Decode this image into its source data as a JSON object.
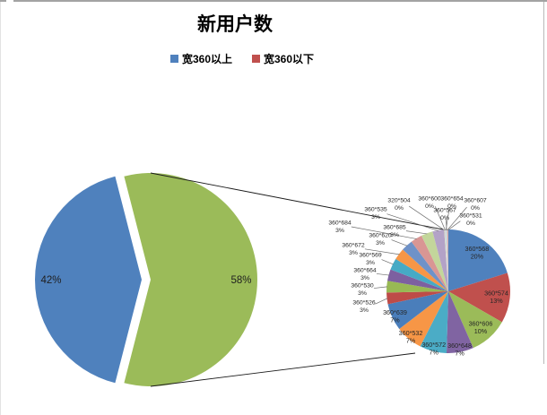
{
  "chart_data": {
    "type": "pie-of-pie",
    "title": "新用户数",
    "legend": {
      "position": "top",
      "items": [
        {
          "label": "宽360以上",
          "color": "#4F81BD"
        },
        {
          "label": "宽360以下",
          "color": "#C0504D"
        }
      ]
    },
    "main_pie": {
      "slices": [
        {
          "label": "42%",
          "value": 42,
          "color": "#4F81BD"
        },
        {
          "label": "58%",
          "value": 58,
          "color": "#9BBB59"
        }
      ]
    },
    "secondary_pie": {
      "slices": [
        {
          "name": "360*568",
          "pct": "20%",
          "value": 20,
          "color": "#4F81BD"
        },
        {
          "name": "360*574",
          "pct": "13%",
          "value": 13,
          "color": "#C0504D"
        },
        {
          "name": "360*606",
          "pct": "10%",
          "value": 10,
          "color": "#9BBB59"
        },
        {
          "name": "360*648",
          "pct": "7%",
          "value": 7,
          "color": "#8064A2"
        },
        {
          "name": "360*572",
          "pct": "7%",
          "value": 7,
          "color": "#4BACC6"
        },
        {
          "name": "360*532",
          "pct": "7%",
          "value": 7,
          "color": "#F79646"
        },
        {
          "name": "360*639",
          "pct": "7%",
          "value": 7,
          "color": "#4A7EBB"
        },
        {
          "name": "360*526",
          "pct": "3%",
          "value": 3,
          "color": "#BE4B48"
        },
        {
          "name": "360*530",
          "pct": "3%",
          "value": 3,
          "color": "#98B954"
        },
        {
          "name": "360*664",
          "pct": "3%",
          "value": 3,
          "color": "#7D60A0"
        },
        {
          "name": "360*569",
          "pct": "3%",
          "value": 3,
          "color": "#46AAC5"
        },
        {
          "name": "360*672",
          "pct": "3%",
          "value": 3,
          "color": "#F79646"
        },
        {
          "name": "360*620",
          "pct": "3%",
          "value": 3,
          "color": "#6F92C8"
        },
        {
          "name": "360*684",
          "pct": "3%",
          "value": 3,
          "color": "#D99694"
        },
        {
          "name": "360*685",
          "pct": "3%",
          "value": 3,
          "color": "#C3D69B"
        },
        {
          "name": "360*535",
          "pct": "3%",
          "value": 3,
          "color": "#B3A2C7"
        },
        {
          "name": "320*504",
          "pct": "0%",
          "value": 0,
          "color": "#D7E4BD"
        },
        {
          "name": "360*600",
          "pct": "0%",
          "value": 0,
          "color": "#CCC1DA"
        },
        {
          "name": "360*654",
          "pct": "0%",
          "value": 0,
          "color": "#B7DEE8"
        },
        {
          "name": "360*567",
          "pct": "0%",
          "value": 0,
          "color": "#FCD5B5"
        },
        {
          "name": "360*607",
          "pct": "0%",
          "value": 0,
          "color": "#95B3D7"
        },
        {
          "name": "360*531",
          "pct": "0%",
          "value": 0,
          "color": "#D99694"
        }
      ]
    }
  }
}
